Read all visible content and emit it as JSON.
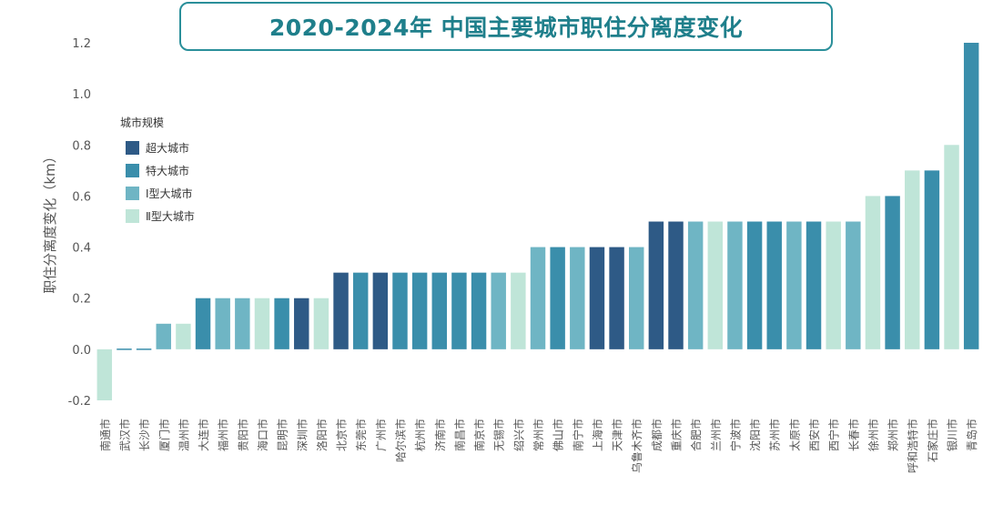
{
  "chart_data": {
    "type": "bar",
    "title": "2020-2024年 中国主要城市职住分离度变化",
    "ylabel": "职住分离度变化（km）",
    "xlabel": "",
    "ylim": [
      -0.2,
      1.2
    ],
    "yticks": [
      -0.2,
      0.0,
      0.2,
      0.4,
      0.6,
      0.8,
      1.0,
      1.2
    ],
    "ytick_labels": [
      "-0.2",
      "0.0",
      "0.2",
      "0.4",
      "0.6",
      "0.8",
      "1.0",
      "1.2"
    ],
    "legend_title": "城市规模",
    "legend": [
      {
        "key": "super",
        "label": "超大城市",
        "color": "#2e5a86"
      },
      {
        "key": "mega",
        "label": "特大城市",
        "color": "#3a8eab"
      },
      {
        "key": "type1",
        "label": "Ⅰ型大城市",
        "color": "#6fb5c4"
      },
      {
        "key": "type2",
        "label": "Ⅱ型大城市",
        "color": "#bfe5d8"
      }
    ],
    "categories": [
      "南通市",
      "武汉市",
      "长沙市",
      "厦门市",
      "温州市",
      "大连市",
      "福州市",
      "贵阳市",
      "海口市",
      "昆明市",
      "深圳市",
      "洛阳市",
      "北京市",
      "东莞市",
      "广州市",
      "哈尔滨市",
      "杭州市",
      "济南市",
      "南昌市",
      "南京市",
      "无锡市",
      "绍兴市",
      "常州市",
      "佛山市",
      "南宁市",
      "上海市",
      "天津市",
      "乌鲁木齐市",
      "成都市",
      "重庆市",
      "合肥市",
      "兰州市",
      "宁波市",
      "沈阳市",
      "苏州市",
      "太原市",
      "西安市",
      "西宁市",
      "长春市",
      "徐州市",
      "郑州市",
      "呼和浩特市",
      "石家庄市",
      "银川市",
      "青岛市"
    ],
    "values": [
      -0.2,
      0.0,
      0.0,
      0.1,
      0.1,
      0.2,
      0.2,
      0.2,
      0.2,
      0.2,
      0.2,
      0.2,
      0.3,
      0.3,
      0.3,
      0.3,
      0.3,
      0.3,
      0.3,
      0.3,
      0.3,
      0.3,
      0.4,
      0.4,
      0.4,
      0.4,
      0.4,
      0.4,
      0.5,
      0.5,
      0.5,
      0.5,
      0.5,
      0.5,
      0.5,
      0.5,
      0.5,
      0.5,
      0.5,
      0.6,
      0.6,
      0.7,
      0.7,
      0.8,
      1.2
    ],
    "groups": [
      "type2",
      "mega",
      "mega",
      "type1",
      "type2",
      "mega",
      "type1",
      "type1",
      "type2",
      "mega",
      "super",
      "type2",
      "super",
      "mega",
      "super",
      "mega",
      "mega",
      "mega",
      "mega",
      "mega",
      "type1",
      "type2",
      "type1",
      "mega",
      "type1",
      "super",
      "super",
      "type1",
      "super",
      "super",
      "type1",
      "type2",
      "type1",
      "mega",
      "mega",
      "type1",
      "mega",
      "type2",
      "type1",
      "type2",
      "mega",
      "type2",
      "mega",
      "type2",
      "mega"
    ]
  }
}
